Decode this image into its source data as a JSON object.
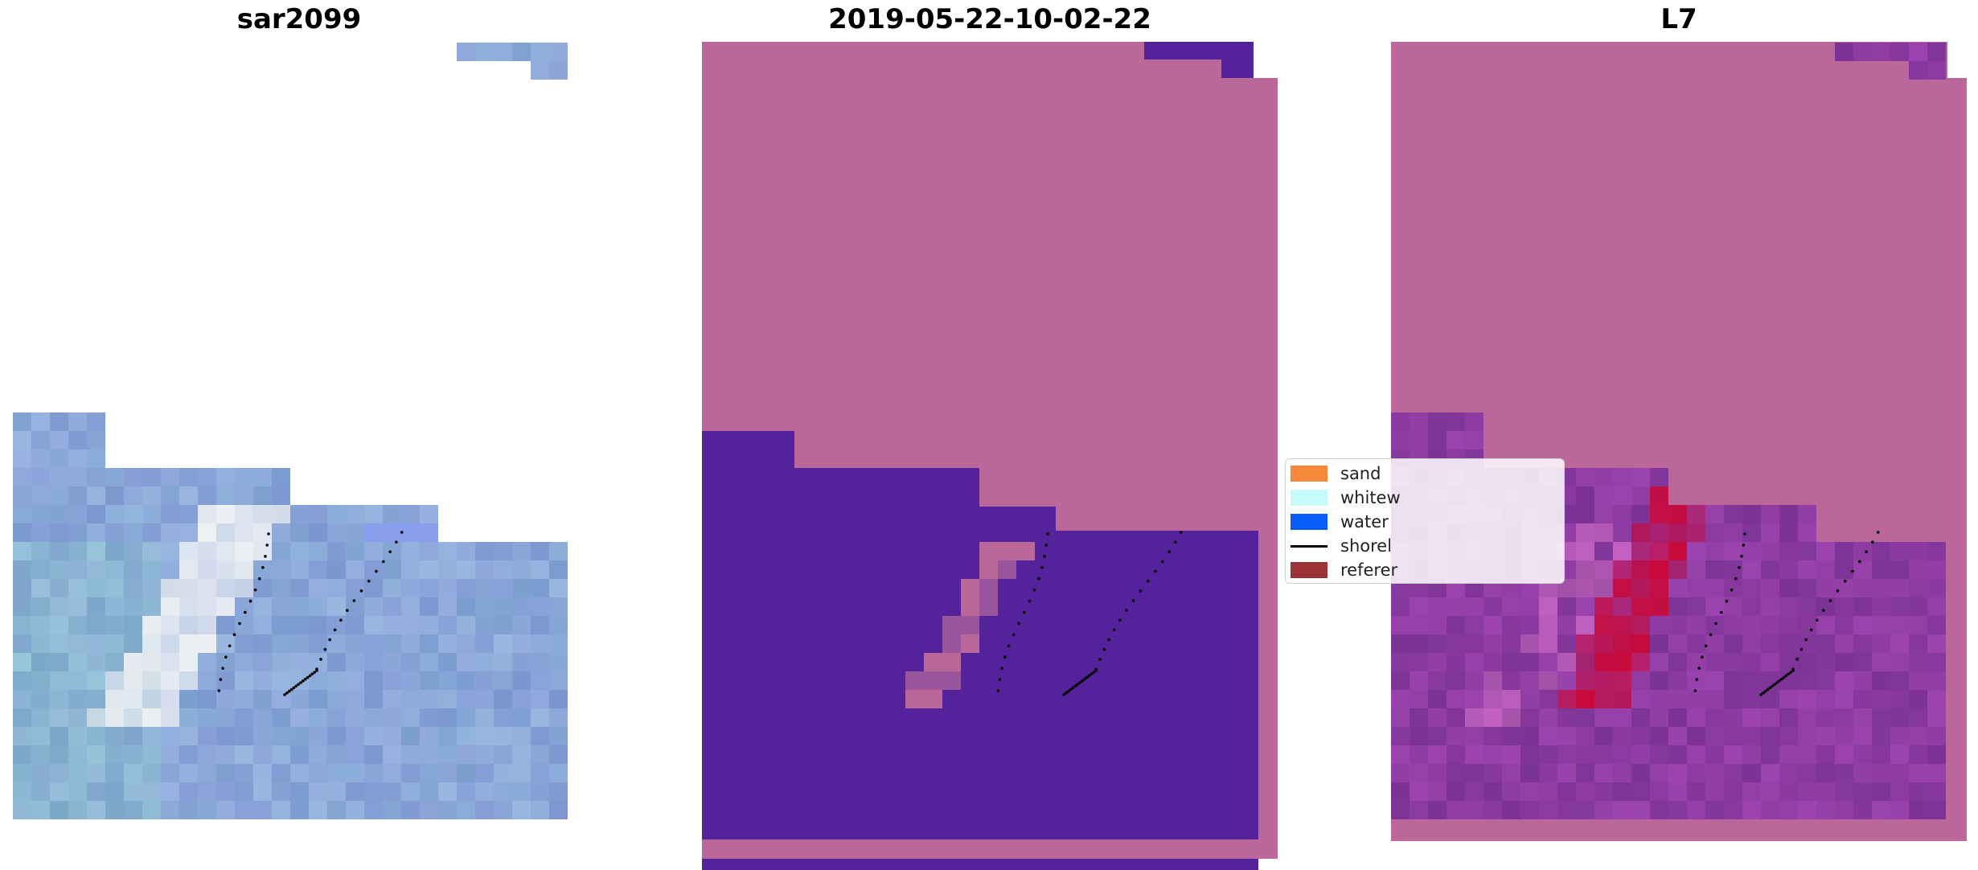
{
  "panels": [
    {
      "title": "sar2099"
    },
    {
      "title": "2019-05-22-10-02-22"
    },
    {
      "title": "L7"
    }
  ],
  "legend": {
    "items": [
      {
        "label": "sand",
        "color": "#f5883a"
      },
      {
        "label": "whitew",
        "color": "#c8fbfb"
      },
      {
        "label": "water",
        "color": "#0a5ef7"
      },
      {
        "label": "shorel",
        "color": "#000000"
      },
      {
        "label": "referer",
        "color": "#9a3236"
      }
    ]
  },
  "colors": {
    "classification_land": "#bb6799",
    "classification_water": "#54229a",
    "classification_water_shallow": "#9a569d",
    "rgb_base": "#8aa7d8",
    "index_base": "#8c3ba2",
    "index_high": "#c80a3c",
    "shoreline_points": "#000000"
  }
}
